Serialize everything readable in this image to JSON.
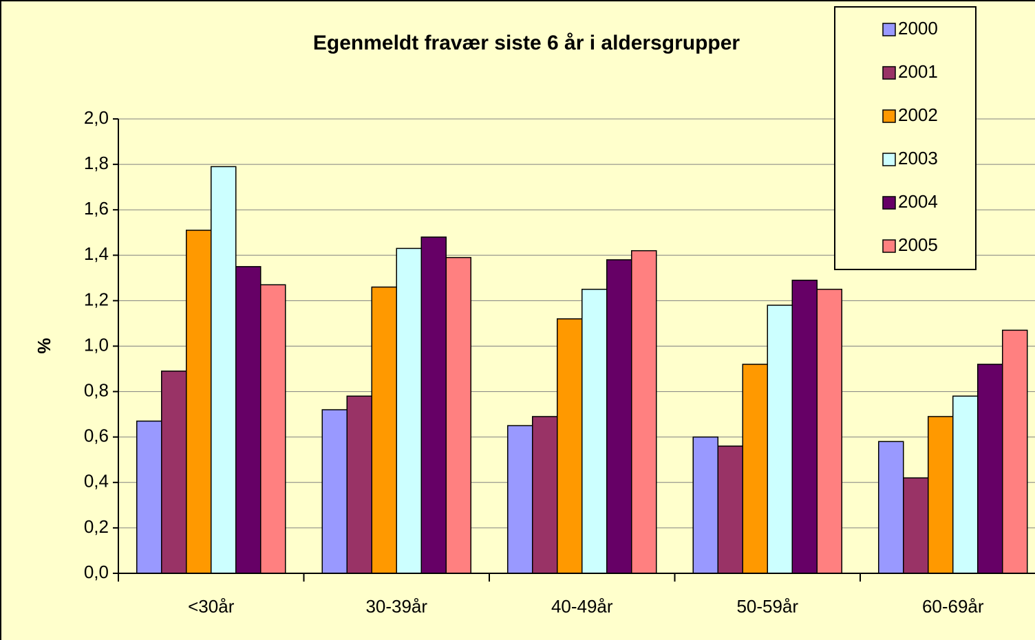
{
  "chart_data": {
    "type": "bar",
    "title": "Egenmeldt fravær siste 6 år i aldersgrupper",
    "y_label": "%",
    "categories": [
      "<30år",
      "30-39år",
      "40-49år",
      "50-59år",
      "60-69år"
    ],
    "series": [
      {
        "name": "2000",
        "color": "#9999ff",
        "values": [
          0.67,
          0.72,
          0.65,
          0.6,
          0.58
        ]
      },
      {
        "name": "2001",
        "color": "#993366",
        "values": [
          0.89,
          0.78,
          0.69,
          0.56,
          0.42
        ]
      },
      {
        "name": "2002",
        "color": "#ff9900",
        "values": [
          1.51,
          1.26,
          1.12,
          0.92,
          0.69
        ]
      },
      {
        "name": "2003",
        "color": "#ccffff",
        "values": [
          1.79,
          1.43,
          1.25,
          1.18,
          0.78
        ]
      },
      {
        "name": "2004",
        "color": "#660066",
        "values": [
          1.35,
          1.48,
          1.38,
          1.29,
          0.92
        ]
      },
      {
        "name": "2005",
        "color": "#ff8080",
        "values": [
          1.27,
          1.39,
          1.42,
          1.25,
          1.07
        ]
      }
    ],
    "ylim": [
      0,
      2
    ],
    "yticks": [
      {
        "value": 0,
        "label": "0,0"
      },
      {
        "value": 0.2,
        "label": "0,2"
      },
      {
        "value": 0.4,
        "label": "0,4"
      },
      {
        "value": 0.6,
        "label": "0,6"
      },
      {
        "value": 0.8,
        "label": "0,8"
      },
      {
        "value": 1,
        "label": "1,0"
      },
      {
        "value": 1.2,
        "label": "1,2"
      },
      {
        "value": 1.4,
        "label": "1,4"
      },
      {
        "value": 1.6,
        "label": "1,6"
      },
      {
        "value": 1.8,
        "label": "1,8"
      },
      {
        "value": 2,
        "label": "2,0"
      }
    ],
    "grid": true,
    "legend": "top-right"
  }
}
